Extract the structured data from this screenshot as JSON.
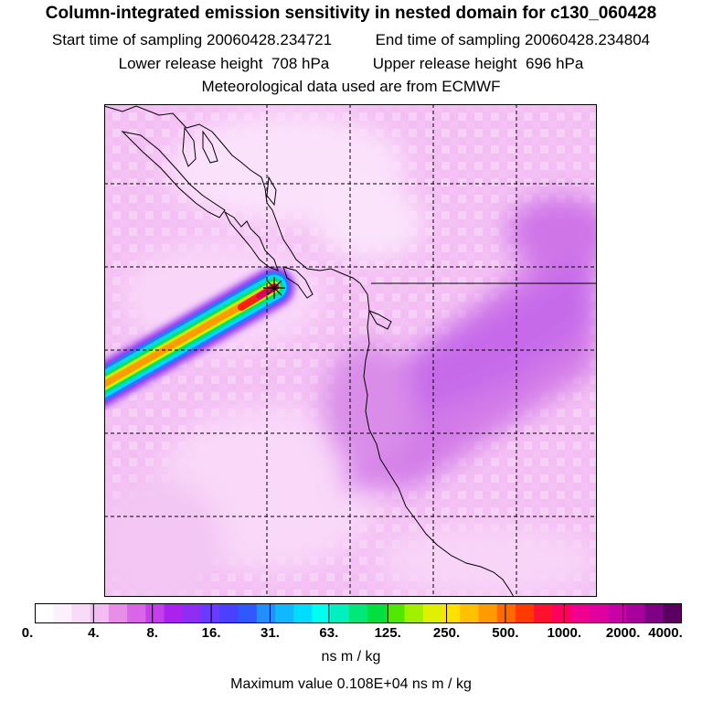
{
  "title": "Column-integrated emission sensitivity in nested domain for c130_060428",
  "sampling": {
    "start_label": "Start time of sampling",
    "start_value": "20060428.234721",
    "end_label": "End time of sampling",
    "end_value": "20060428.234804"
  },
  "release": {
    "lower_label": "Lower release height",
    "lower_value": "708 hPa",
    "upper_label": "Upper release height",
    "upper_value": "696 hPa"
  },
  "met_line": "Meteorological data used are from ECMWF",
  "colorbar": {
    "colors": [
      "#ffffff",
      "#fdf0fd",
      "#f9daf9",
      "#f3bcf3",
      "#e78ee9",
      "#d966e8",
      "#c43fea",
      "#aa22ee",
      "#8f2df2",
      "#6a3aff",
      "#4a40ff",
      "#3058ff",
      "#2090ff",
      "#10b8ff",
      "#00dcff",
      "#00ffee",
      "#00f0c0",
      "#00e878",
      "#00e040",
      "#50e800",
      "#a0f000",
      "#dff000",
      "#ffe000",
      "#ffc000",
      "#ff9a00",
      "#ff6a00",
      "#ff3a00",
      "#ff1030",
      "#ff0060",
      "#f00090",
      "#e000a0",
      "#c800a8",
      "#a8009c",
      "#800084",
      "#5a0060"
    ],
    "tick_labels": [
      "0.",
      "4.",
      "8.",
      "16.",
      "31.",
      "63.",
      "125.",
      "250.",
      "500.",
      "1000.",
      "2000.",
      "4000."
    ],
    "units": "ns m / kg"
  },
  "max_value_text": "Maximum value  0.108E+04 ns m / kg",
  "map": {
    "release_marker": "release-site-star-icon"
  }
}
